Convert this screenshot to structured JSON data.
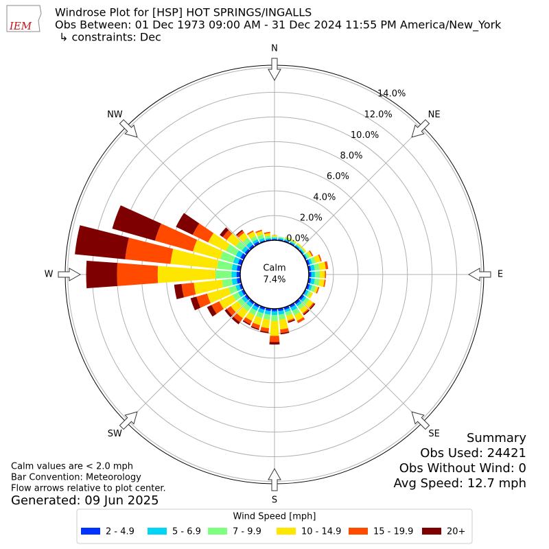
{
  "chart_data": {
    "type": "windrose",
    "title_lines": [
      "Windrose Plot for [HSP] HOT SPRINGS/INGALLS",
      "Obs Between: 01 Dec 1973 09:00 AM - 31 Dec 2024 11:55 PM America/New_York",
      "↳ constraints: Dec"
    ],
    "logo": "IEM",
    "x": [
      0,
      10,
      20,
      30,
      40,
      50,
      60,
      70,
      80,
      90,
      100,
      110,
      120,
      130,
      140,
      150,
      160,
      170,
      180,
      190,
      200,
      210,
      220,
      230,
      240,
      250,
      260,
      270,
      280,
      290,
      300,
      310,
      320,
      330,
      340,
      350
    ],
    "xticks": [
      {
        "value": 0,
        "label": "N"
      },
      {
        "value": 45,
        "label": "NE"
      },
      {
        "value": 90,
        "label": "E"
      },
      {
        "value": 135,
        "label": "SE"
      },
      {
        "value": 180,
        "label": "S"
      },
      {
        "value": 225,
        "label": "SW"
      },
      {
        "value": 270,
        "label": "W"
      },
      {
        "value": 315,
        "label": "NW"
      }
    ],
    "ylim": [
      0,
      14.2
    ],
    "yticks": [
      {
        "value": 0,
        "label": "0.0%"
      },
      {
        "value": 2,
        "label": "2.0%"
      },
      {
        "value": 4,
        "label": "4.0%"
      },
      {
        "value": 6,
        "label": "6.0%"
      },
      {
        "value": 8,
        "label": "8.0%"
      },
      {
        "value": 10,
        "label": "10.0%"
      },
      {
        "value": 12,
        "label": "12.0%"
      },
      {
        "value": 14,
        "label": "14.0%"
      }
    ],
    "grid": true,
    "calm_label": "Calm",
    "calm_value": 7.4,
    "calm_value_label": "7.4%",
    "legend_title": "Wind Speed [mph]",
    "series": [
      {
        "name": "2 - 4.9",
        "color": "#0033ff",
        "values": [
          0.1,
          0.1,
          0.1,
          0.1,
          0.1,
          0.1,
          0.1,
          0.2,
          0.2,
          0.2,
          0.2,
          0.2,
          0.1,
          0.2,
          0.2,
          0.2,
          0.2,
          0.2,
          0.2,
          0.2,
          0.2,
          0.2,
          0.2,
          0.2,
          0.2,
          0.2,
          0.3,
          0.3,
          0.3,
          0.3,
          0.3,
          0.2,
          0.2,
          0.2,
          0.1,
          0.1
        ]
      },
      {
        "name": "5 - 6.9",
        "color": "#00d5f5",
        "values": [
          0.1,
          0.1,
          0.1,
          0.1,
          0.1,
          0.1,
          0.1,
          0.2,
          0.3,
          0.3,
          0.3,
          0.2,
          0.2,
          0.2,
          0.2,
          0.3,
          0.2,
          0.3,
          0.3,
          0.3,
          0.3,
          0.3,
          0.3,
          0.3,
          0.3,
          0.3,
          0.4,
          0.4,
          0.4,
          0.4,
          0.4,
          0.3,
          0.3,
          0.2,
          0.2,
          0.1
        ]
      },
      {
        "name": "7 - 9.9",
        "color": "#7fff7f",
        "values": [
          0.1,
          0.1,
          0.1,
          0.1,
          0.1,
          0.1,
          0.2,
          0.3,
          0.4,
          0.4,
          0.4,
          0.3,
          0.2,
          0.3,
          0.3,
          0.4,
          0.3,
          0.4,
          0.5,
          0.4,
          0.4,
          0.4,
          0.4,
          0.4,
          0.5,
          0.6,
          0.8,
          1.3,
          1.2,
          1.1,
          0.9,
          0.6,
          0.4,
          0.3,
          0.3,
          0.2
        ]
      },
      {
        "name": "10 - 14.9",
        "color": "#ffe600",
        "values": [
          0.1,
          0.0,
          0.1,
          0.1,
          0.1,
          0.1,
          0.2,
          0.4,
          0.5,
          0.4,
          0.4,
          0.2,
          0.2,
          0.4,
          0.4,
          0.5,
          0.4,
          0.8,
          1.2,
          0.7,
          0.6,
          0.5,
          0.7,
          0.7,
          1.2,
          1.8,
          2.3,
          4.7,
          3.8,
          2.3,
          1.6,
          0.9,
          0.5,
          0.4,
          0.3,
          0.2
        ]
      },
      {
        "name": "15 - 19.9",
        "color": "#ff4a00",
        "values": [
          0.0,
          0.0,
          0.0,
          0.0,
          0.0,
          0.0,
          0.1,
          0.1,
          0.2,
          0.1,
          0.1,
          0.1,
          0.0,
          0.1,
          0.1,
          0.2,
          0.1,
          0.3,
          0.5,
          0.3,
          0.3,
          0.3,
          0.4,
          0.4,
          0.7,
          0.9,
          1.0,
          3.3,
          3.7,
          3.2,
          1.4,
          0.4,
          0.2,
          0.1,
          0.1,
          0.1
        ]
      },
      {
        "name": "20+",
        "color": "#7f0000",
        "values": [
          0.0,
          0.0,
          0.0,
          0.0,
          0.0,
          0.0,
          0.0,
          0.0,
          0.0,
          0.0,
          0.0,
          0.0,
          0.0,
          0.1,
          0.1,
          0.0,
          0.1,
          0.1,
          0.2,
          0.1,
          0.1,
          0.1,
          0.2,
          0.2,
          0.4,
          0.5,
          0.6,
          2.5,
          4.1,
          3.6,
          1.5,
          0.3,
          0.1,
          0.0,
          0.0,
          0.0
        ]
      }
    ],
    "summary": [
      "Summary",
      "Obs Used: 24421",
      "Obs Without Wind: 0",
      "Avg Speed: 12.7 mph"
    ],
    "notes": [
      "Calm values are < 2.0 mph",
      "Bar Convention: Meteorology",
      "Flow arrows relative to plot center."
    ],
    "generated": "Generated: 09 Jun 2025"
  }
}
